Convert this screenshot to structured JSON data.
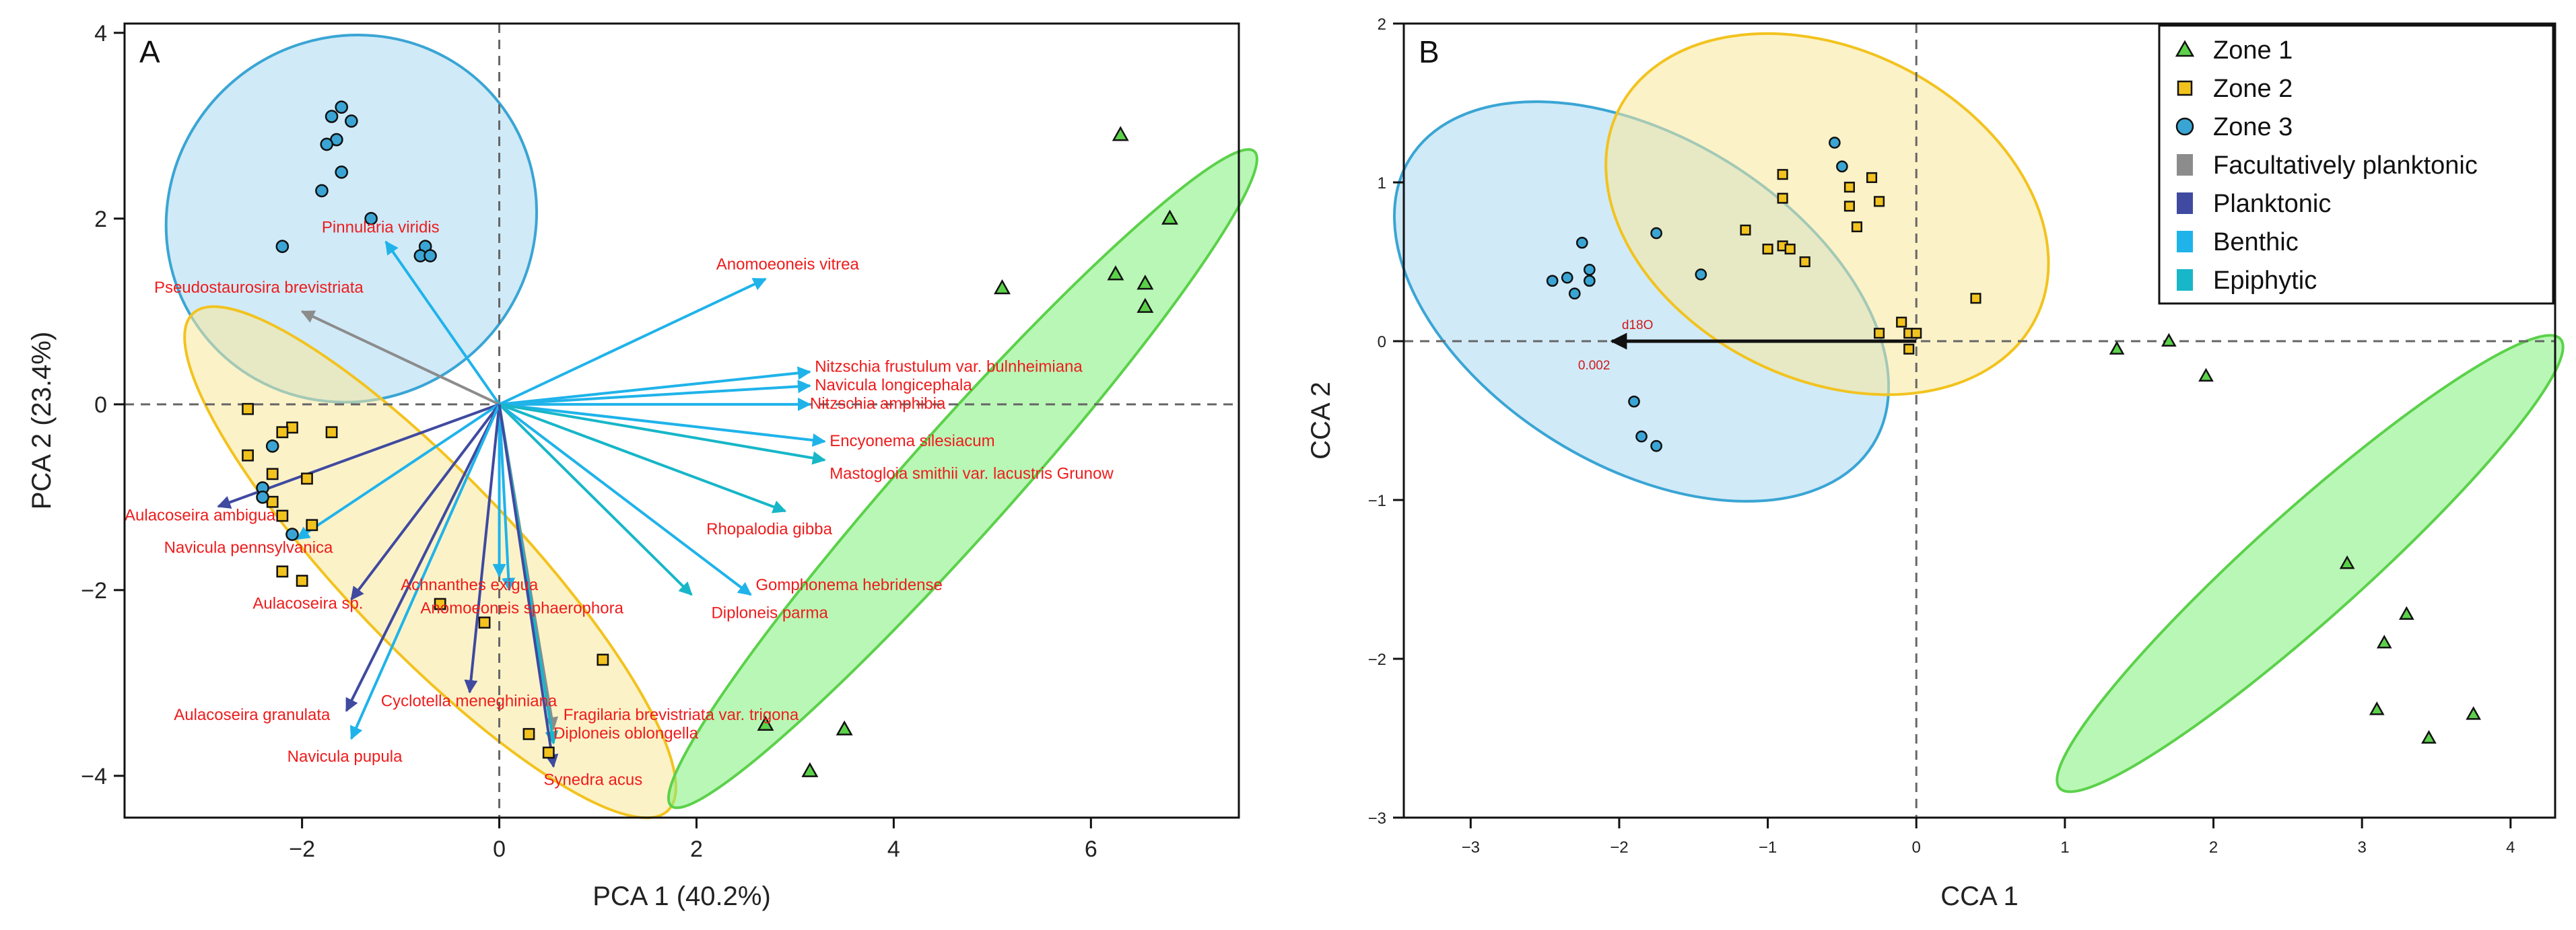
{
  "colors": {
    "zone1": "#5bd14a",
    "zone1_fill": "#7ff07a",
    "zone2": "#f2c31f",
    "zone2_fill": "#f9e79a",
    "zone3": "#3aa5d4",
    "zone3_fill": "#a9d8f2",
    "facultatively": "#8c8c8c",
    "planktonic": "#3f4aa0",
    "benthic": "#1fb3ea",
    "epiphytic": "#17b6c8",
    "label": "#ee1c1c"
  },
  "legend": {
    "items": [
      {
        "label": "Zone 1",
        "kind": "triangle",
        "color": "#5bd14a"
      },
      {
        "label": "Zone 2",
        "kind": "square",
        "color": "#f2c31f"
      },
      {
        "label": "Zone 3",
        "kind": "circle",
        "color": "#3aa5d4"
      },
      {
        "label": "Facultatively planktonic",
        "kind": "bar",
        "color": "#8c8c8c"
      },
      {
        "label": "Planktonic",
        "kind": "bar",
        "color": "#3f4aa0"
      },
      {
        "label": "Benthic",
        "kind": "bar",
        "color": "#1fb3ea"
      },
      {
        "label": "Epiphytic",
        "kind": "bar",
        "color": "#17b6c8"
      }
    ]
  },
  "chart_data": [
    {
      "panel": "A",
      "type": "scatter",
      "xlabel": "PCA 1 (40.2%)",
      "ylabel": "PCA 2 (23.4%)",
      "xlim": [
        -3.8,
        7.5
      ],
      "ylim": [
        -4.45,
        4.1
      ],
      "xticks": [
        -2,
        0,
        2,
        4,
        6
      ],
      "yticks": [
        -4,
        -2,
        0,
        2,
        4
      ],
      "zones": {
        "zone1": [
          [
            6.3,
            2.9
          ],
          [
            6.8,
            2.0
          ],
          [
            5.1,
            1.25
          ],
          [
            6.25,
            1.4
          ],
          [
            6.55,
            1.3
          ],
          [
            6.55,
            1.05
          ],
          [
            2.7,
            -3.45
          ],
          [
            3.5,
            -3.5
          ],
          [
            3.15,
            -3.95
          ]
        ],
        "zone2": [
          [
            -2.55,
            -0.05
          ],
          [
            -2.1,
            -0.25
          ],
          [
            -2.2,
            -0.3
          ],
          [
            -1.7,
            -0.3
          ],
          [
            -2.55,
            -0.55
          ],
          [
            -2.3,
            -0.75
          ],
          [
            -1.95,
            -0.8
          ],
          [
            -2.3,
            -1.05
          ],
          [
            -2.2,
            -1.2
          ],
          [
            -1.9,
            -1.3
          ],
          [
            -2.2,
            -1.8
          ],
          [
            -2.0,
            -1.9
          ],
          [
            -0.6,
            -2.15
          ],
          [
            -0.15,
            -2.35
          ],
          [
            1.05,
            -2.75
          ],
          [
            0.3,
            -3.55
          ],
          [
            0.5,
            -3.75
          ]
        ],
        "zone3": [
          [
            -1.6,
            3.2
          ],
          [
            -1.7,
            3.1
          ],
          [
            -1.5,
            3.05
          ],
          [
            -1.65,
            2.85
          ],
          [
            -1.75,
            2.8
          ],
          [
            -1.6,
            2.5
          ],
          [
            -1.8,
            2.3
          ],
          [
            -1.3,
            2.0
          ],
          [
            -0.75,
            1.7
          ],
          [
            -0.8,
            1.6
          ],
          [
            -0.7,
            1.6
          ],
          [
            -2.2,
            1.7
          ],
          [
            -2.3,
            -0.45
          ],
          [
            -2.4,
            -0.9
          ],
          [
            -2.4,
            -1.0
          ],
          [
            -2.1,
            -1.4
          ]
        ]
      },
      "ellipses": [
        {
          "zone": "zone3",
          "center": [
            -1.5,
            2.0
          ],
          "rx": 1.95,
          "ry": 1.9,
          "angle": 40
        },
        {
          "zone": "zone2",
          "center": [
            -0.7,
            -1.7
          ],
          "rx": 3.6,
          "ry": 0.9,
          "angle": -48
        },
        {
          "zone": "zone1",
          "center": [
            4.7,
            -0.8
          ],
          "rx": 4.6,
          "ry": 0.55,
          "angle": 50
        }
      ],
      "arrows": [
        {
          "label": "Pinnularia viridis",
          "x": -1.15,
          "y": 1.75,
          "group": "benthic",
          "lx": -1.8,
          "ly": 1.85
        },
        {
          "label": "Pseudostaurosira brevistriata",
          "x": -2.0,
          "y": 1.0,
          "group": "facultatively",
          "lx": -3.5,
          "ly": 1.2
        },
        {
          "label": "Anomoeoneis vitrea",
          "x": 2.7,
          "y": 1.35,
          "group": "benthic",
          "lx": 2.2,
          "ly": 1.45
        },
        {
          "label": "Nitzschia frustulum var. bulnheimiana",
          "x": 3.15,
          "y": 0.35,
          "group": "benthic",
          "lx": 3.2,
          "ly": 0.35
        },
        {
          "label": "Navicula longicephala",
          "x": 3.15,
          "y": 0.2,
          "group": "benthic",
          "lx": 3.2,
          "ly": 0.15
        },
        {
          "label": "Nitzschia amphibia",
          "x": 3.15,
          "y": 0.0,
          "group": "benthic",
          "lx": 3.15,
          "ly": -0.05
        },
        {
          "label": "Encyonema silesiacum",
          "x": 3.3,
          "y": -0.4,
          "group": "benthic",
          "lx": 3.35,
          "ly": -0.45
        },
        {
          "label": "Mastogloia smithii var. lacustris Grunow",
          "x": 3.3,
          "y": -0.6,
          "group": "epiphytic",
          "lx": 3.35,
          "ly": -0.8
        },
        {
          "label": "Rhopalodia gibba",
          "x": 2.9,
          "y": -1.15,
          "group": "epiphytic",
          "lx": 2.1,
          "ly": -1.4
        },
        {
          "label": "Gomphonema hebridense",
          "x": 2.55,
          "y": -2.05,
          "group": "benthic",
          "lx": 2.6,
          "ly": -2.0
        },
        {
          "label": "Diploneis parma",
          "x": 1.95,
          "y": -2.05,
          "group": "epiphytic",
          "lx": 2.15,
          "ly": -2.3
        },
        {
          "label": "Aulacoseira ambigua",
          "x": -2.85,
          "y": -1.1,
          "group": "planktonic",
          "lx": -3.8,
          "ly": -1.25
        },
        {
          "label": "Navicula pennsylvanica",
          "x": -2.05,
          "y": -1.45,
          "group": "benthic",
          "lx": -3.4,
          "ly": -1.6
        },
        {
          "label": "Aulacoseira sp.",
          "x": -1.5,
          "y": -2.1,
          "group": "planktonic",
          "lx": -2.5,
          "ly": -2.2
        },
        {
          "label": "Achnanthes exigua",
          "x": 0.0,
          "y": -1.85,
          "group": "benthic",
          "lx": -1.0,
          "ly": -2.0
        },
        {
          "label": "Anomoeoneis sphaerophora",
          "x": 0.1,
          "y": -2.0,
          "group": "benthic",
          "lx": -0.8,
          "ly": -2.25
        },
        {
          "label": "Cyclotella meneghiniana",
          "x": -0.3,
          "y": -3.1,
          "group": "planktonic",
          "lx": -1.2,
          "ly": -3.25
        },
        {
          "label": "Aulacoseira granulata",
          "x": -1.55,
          "y": -3.3,
          "group": "planktonic",
          "lx": -3.3,
          "ly": -3.4
        },
        {
          "label": "Navicula pupula",
          "x": -1.5,
          "y": -3.6,
          "group": "benthic",
          "lx": -2.15,
          "ly": -3.85
        },
        {
          "label": "Fragilaria brevistriata var. trigona",
          "x": 0.55,
          "y": -3.5,
          "group": "facultatively",
          "lx": 0.65,
          "ly": -3.4
        },
        {
          "label": "Diploneis oblongella",
          "x": 0.55,
          "y": -3.65,
          "group": "epiphytic",
          "lx": 0.55,
          "ly": -3.6
        },
        {
          "label": "Synedra acus",
          "x": 0.55,
          "y": -3.9,
          "group": "planktonic",
          "lx": 0.45,
          "ly": -4.1
        }
      ]
    },
    {
      "panel": "B",
      "type": "scatter",
      "xlabel": "CCA 1",
      "ylabel": "CCA 2",
      "xlim": [
        -3.45,
        4.3
      ],
      "ylim": [
        -3.0,
        2.0
      ],
      "xticks": [
        -3,
        -2,
        -1,
        0,
        1,
        2,
        3,
        4
      ],
      "yticks": [
        -3,
        -2,
        -1,
        0,
        1,
        2
      ],
      "zones": {
        "zone1": [
          [
            1.35,
            -0.05
          ],
          [
            1.7,
            0.0
          ],
          [
            1.95,
            -0.22
          ],
          [
            2.9,
            -1.4
          ],
          [
            3.3,
            -1.72
          ],
          [
            3.15,
            -1.9
          ],
          [
            3.75,
            -2.35
          ],
          [
            3.1,
            -2.32
          ],
          [
            3.45,
            -2.5
          ]
        ],
        "zone2": [
          [
            -0.9,
            1.05
          ],
          [
            -0.3,
            1.03
          ],
          [
            -0.45,
            0.97
          ],
          [
            -0.9,
            0.9
          ],
          [
            -0.45,
            0.85
          ],
          [
            -0.25,
            0.88
          ],
          [
            -1.15,
            0.7
          ],
          [
            -0.4,
            0.72
          ],
          [
            -0.9,
            0.6
          ],
          [
            -1.0,
            0.58
          ],
          [
            -0.85,
            0.58
          ],
          [
            -0.75,
            0.5
          ],
          [
            0.4,
            0.27
          ],
          [
            -0.1,
            0.12
          ],
          [
            -0.25,
            0.05
          ],
          [
            -0.05,
            0.05
          ],
          [
            0.0,
            0.05
          ],
          [
            -0.05,
            -0.05
          ]
        ],
        "zone3": [
          [
            -0.55,
            1.25
          ],
          [
            -0.5,
            1.1
          ],
          [
            -1.75,
            0.68
          ],
          [
            -2.25,
            0.62
          ],
          [
            -2.2,
            0.45
          ],
          [
            -2.35,
            0.4
          ],
          [
            -2.45,
            0.38
          ],
          [
            -2.2,
            0.38
          ],
          [
            -2.3,
            0.3
          ],
          [
            -1.45,
            0.42
          ],
          [
            -1.9,
            -0.38
          ],
          [
            -1.85,
            -0.6
          ],
          [
            -1.75,
            -0.66
          ]
        ]
      },
      "ellipses": [
        {
          "zone": "zone3",
          "center": [
            -1.85,
            0.25
          ],
          "rx": 1.8,
          "ry": 1.05,
          "angle": -30
        },
        {
          "zone": "zone2",
          "center": [
            -0.6,
            0.8
          ],
          "rx": 1.55,
          "ry": 1.05,
          "angle": -25
        },
        {
          "zone": "zone1",
          "center": [
            2.65,
            -1.4
          ],
          "rx": 2.2,
          "ry": 0.35,
          "angle": 40
        }
      ],
      "env_arrow": {
        "label": "d18O",
        "value_label": "0.002",
        "x0": 0.0,
        "y0": 0.0,
        "x1": -2.05,
        "y1": 0.0
      }
    }
  ]
}
